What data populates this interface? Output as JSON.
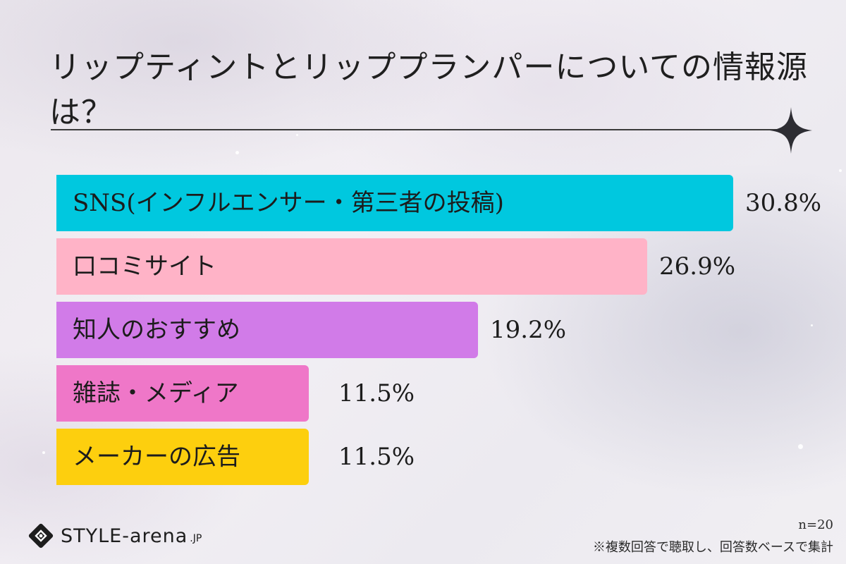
{
  "title": "リップティントとリッププランパーについての情報源は？",
  "chart_data": {
    "type": "bar",
    "orientation": "horizontal",
    "categories": [
      "SNS(インフルエンサー・第三者の投稿)",
      "口コミサイト",
      "知人のおすすめ",
      "雑誌・メディア",
      "メーカーの広告"
    ],
    "values": [
      30.8,
      26.9,
      19.2,
      11.5,
      11.5
    ],
    "value_labels": [
      "30.8%",
      "26.9%",
      "19.2%",
      "11.5%",
      "11.5%"
    ],
    "bar_colors": [
      "#00c8df",
      "#ffb3c7",
      "#d17be8",
      "#ef77c8",
      "#fdcf0e"
    ],
    "unit": "%",
    "xlim": [
      0,
      30.8
    ],
    "grid": false
  },
  "sample_size": "n=20",
  "footnote": "※複数回答で聴取し、回答数ベースで集計",
  "logo": {
    "text": "STYLE-arena",
    "suffix": ".JP",
    "icon": "style-arena-logo-icon"
  },
  "decoration": {
    "icon": "sparkle-star-icon"
  }
}
